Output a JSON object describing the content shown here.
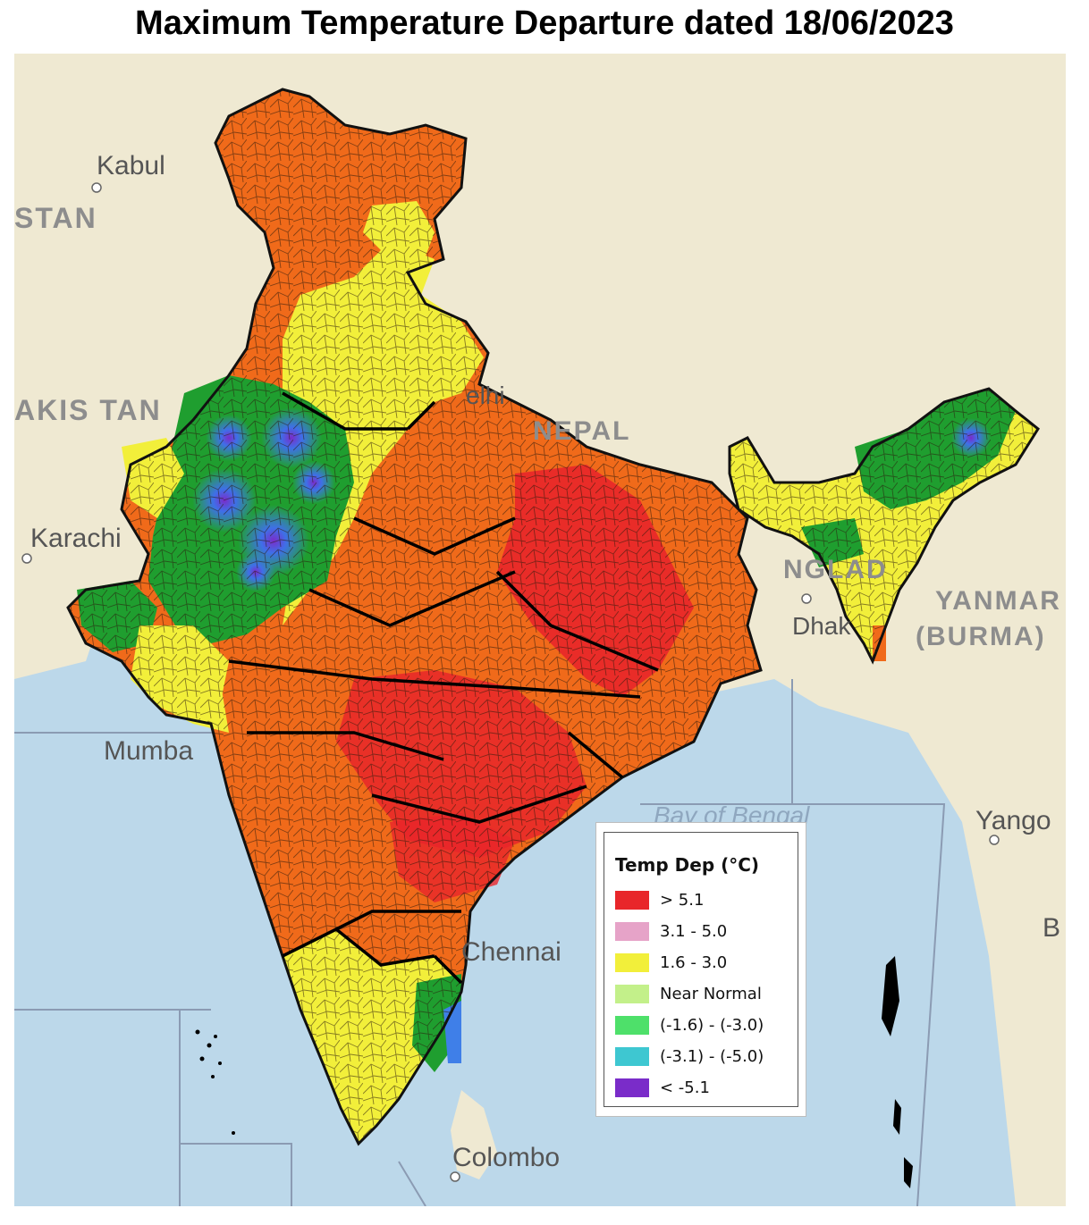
{
  "title": "Maximum Temperature Departure dated 18/06/2023",
  "map": {
    "places": {
      "kabul": "Kabul",
      "stan": "STAN",
      "pakistan": "AKIS TAN",
      "karachi": "Karachi",
      "delhi": "elhi",
      "nepal": "NEPAL",
      "bangladesh": "NGLAD",
      "dhaka": "Dhak",
      "myanmar": "YANMAR",
      "burma": "(BURMA)",
      "mumbai": "Mumba",
      "chennai": "Chennai",
      "colombo": "Colombo",
      "yangon": "Yango",
      "bay_of_bengal": "Bay of Bengal",
      "b_edge": "B"
    }
  },
  "legend": {
    "title": "Temp Dep (°C)",
    "items": [
      {
        "label": "> 5.1",
        "color": "#e8262a"
      },
      {
        "label": "3.1 - 5.0",
        "color": "#e6a3c8"
      },
      {
        "label": "1.6 - 3.0",
        "color": "#f2ef3a"
      },
      {
        "label": "Near Normal",
        "color": "#c3f08a"
      },
      {
        "label": "(-1.6) - (-3.0)",
        "color": "#4ee06a"
      },
      {
        "label": "(-3.1) - (-5.0)",
        "color": "#3ec7d1"
      },
      {
        "label": "< -5.1",
        "color": "#7a2cc9"
      }
    ]
  },
  "colors": {
    "sea": "#bcd8ea",
    "land": "#efe9d2",
    "hot_orange": "#f06a1a",
    "very_hot_red": "#e8262a",
    "warm_yellow": "#f2ef3a",
    "cool_green": "#1f9e2f",
    "cold_blue": "#3f7fe8",
    "coldest_purple": "#7a2cc9"
  }
}
